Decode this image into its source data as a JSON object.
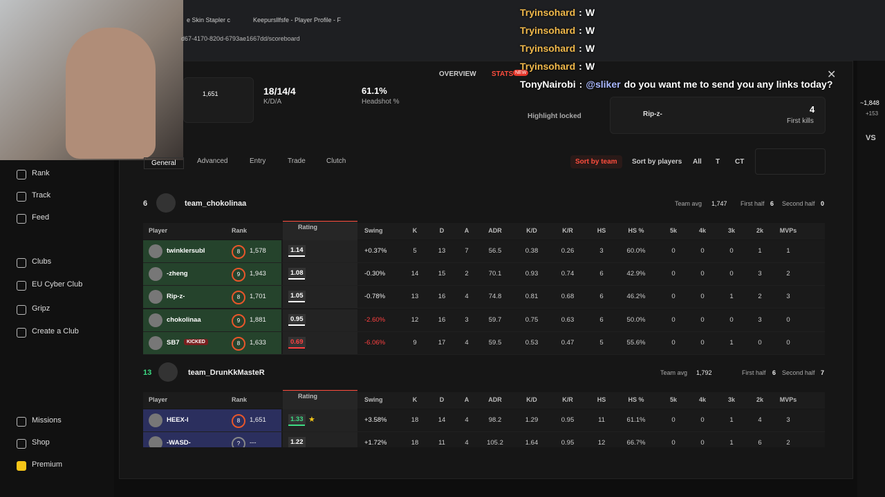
{
  "browser": {
    "tabs": [
      "e Skin Stapler c",
      "Keepursllfsfe - Player Profile - F"
    ],
    "url": "d67-4170-820d-6793ae1667dd/scoreboard"
  },
  "chat": [
    {
      "name": "Tryinsohard",
      "sep": ":",
      "message": "W"
    },
    {
      "name": "Tryinsohard",
      "sep": ":",
      "message": "W"
    },
    {
      "name": "Tryinsohard",
      "sep": ":",
      "message": "W"
    },
    {
      "name": "Tryinsohard",
      "sep": ":",
      "message": "W"
    },
    {
      "name": "TonyNairobi",
      "sep": ":",
      "mention": "@sliker",
      "message": "do you want me to send you any links today?"
    }
  ],
  "sidebar": {
    "items": [
      "Rank",
      "Track",
      "Feed",
      "Clubs",
      "EU Cyber Club",
      "Gripz",
      "Create a Club",
      "Missions",
      "Shop",
      "Premium"
    ]
  },
  "rightbar": {
    "points": "~1,848",
    "delta": "+153",
    "vs": "VS"
  },
  "modal": {
    "tabs": [
      "OVERVIEW",
      "STATS"
    ],
    "new_badge": "NEW",
    "cards": {
      "rank": "1,651",
      "kda": "18/14/4",
      "kda_label": "K/D/A",
      "hs": "61.1%",
      "hs_label": "Headshot %",
      "highlight": "Highlight locked",
      "first_kill_player": "Rip-z-",
      "first_kills": "4",
      "first_kills_label": "First kills"
    }
  },
  "filters": {
    "tabs": [
      "General",
      "Advanced",
      "Entry",
      "Trade",
      "Clutch"
    ],
    "sort": [
      "Sort by team",
      "Sort by players"
    ],
    "sides": [
      "All",
      "T",
      "CT"
    ]
  },
  "columns": [
    "Player",
    "Rank",
    "Rating",
    "Swing",
    "K",
    "D",
    "A",
    "ADR",
    "K/D",
    "K/R",
    "HS",
    "HS %",
    "5k",
    "4k",
    "3k",
    "2k",
    "MVPs"
  ],
  "teams": [
    {
      "score": "6",
      "name": "team_chokolinaa",
      "avg_label": "Team avg",
      "avg": "1,747",
      "first_label": "First half",
      "first": "6",
      "second_label": "Second half",
      "second": "0",
      "players": [
        {
          "name": "twinklersubl",
          "level": "8",
          "rank": "1,578",
          "rating": "1.14",
          "swing": "+0.37%",
          "stats": [
            "5",
            "13",
            "7",
            "56.5",
            "0.38",
            "0.26",
            "3",
            "60.0%",
            "0",
            "0",
            "0",
            "1",
            "1"
          ]
        },
        {
          "name": "-zheng",
          "level": "9",
          "rank": "1,943",
          "rating": "1.08",
          "swing": "-0.30%",
          "stats": [
            "14",
            "15",
            "2",
            "70.1",
            "0.93",
            "0.74",
            "6",
            "42.9%",
            "0",
            "0",
            "0",
            "3",
            "2"
          ]
        },
        {
          "name": "Rip-z-",
          "level": "8",
          "rank": "1,701",
          "rating": "1.05",
          "swing": "-0.78%",
          "stats": [
            "13",
            "16",
            "4",
            "74.8",
            "0.81",
            "0.68",
            "6",
            "46.2%",
            "0",
            "0",
            "1",
            "2",
            "3"
          ]
        },
        {
          "name": "chokolinaa",
          "level": "9",
          "rank": "1,881",
          "rating": "0.95",
          "swing": "-2.60%",
          "stats": [
            "12",
            "16",
            "3",
            "59.7",
            "0.75",
            "0.63",
            "6",
            "50.0%",
            "0",
            "0",
            "0",
            "3",
            "0"
          ]
        },
        {
          "name": "SB7",
          "tag": "KICKED",
          "level": "8",
          "rank": "1,633",
          "rating": "0.69",
          "swing": "-6.06%",
          "stats": [
            "9",
            "17",
            "4",
            "59.5",
            "0.53",
            "0.47",
            "5",
            "55.6%",
            "0",
            "0",
            "1",
            "0",
            "0"
          ]
        }
      ]
    },
    {
      "score": "13",
      "name": "team_DrunKkMasteR",
      "avg_label": "Team avg",
      "avg": "1,792",
      "first_label": "First half",
      "first": "6",
      "second_label": "Second half",
      "second": "7",
      "players": [
        {
          "name": "HEEX-I",
          "level": "8",
          "rank": "1,651",
          "rating": "1.33",
          "swing": "+3.58%",
          "stats": [
            "18",
            "14",
            "4",
            "98.2",
            "1.29",
            "0.95",
            "11",
            "61.1%",
            "0",
            "0",
            "1",
            "4",
            "3"
          ]
        },
        {
          "name": "-WASD-",
          "level": "?",
          "rank": "---",
          "rating": "1.22",
          "swing": "+1.72%",
          "stats": [
            "18",
            "11",
            "4",
            "105.2",
            "1.64",
            "0.95",
            "12",
            "66.7%",
            "0",
            "0",
            "1",
            "6",
            "2"
          ]
        }
      ]
    }
  ]
}
